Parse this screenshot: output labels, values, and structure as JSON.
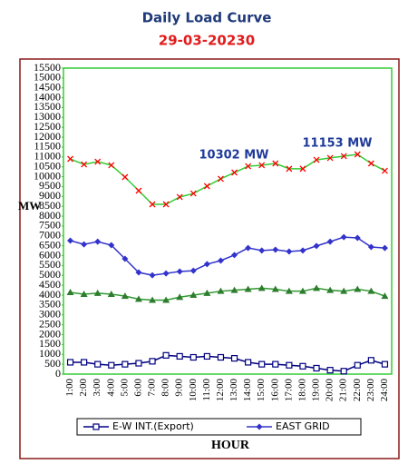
{
  "chart_data": {
    "type": "line",
    "title": "Daily Load Curve",
    "subtitle": "29-03-20230",
    "xlabel": "HOUR",
    "ylabel": "MW",
    "annotations": [
      "10302 MW",
      "11153 MW"
    ],
    "categories": [
      "1:00",
      "2:00",
      "3:00",
      "4:00",
      "5:00",
      "6:00",
      "7:00",
      "8:00",
      "9:00",
      "10:00",
      "11:00",
      "12:00",
      "13:00",
      "14:00",
      "15:00",
      "16:00",
      "17:00",
      "18:00",
      "19:00",
      "20:00",
      "21:00",
      "22:00",
      "23:00",
      "24:00"
    ],
    "ylim": [
      0,
      15500
    ],
    "yticks": [
      0,
      500,
      1000,
      1500,
      2000,
      2500,
      3000,
      3500,
      4000,
      4500,
      5000,
      5500,
      6000,
      6500,
      7000,
      7500,
      8000,
      8500,
      9000,
      9500,
      10000,
      10500,
      11000,
      11500,
      12000,
      12500,
      13000,
      13500,
      14000,
      14500,
      15000,
      15500
    ],
    "grid": false,
    "series": [
      {
        "name": "E-W INT.(Export)",
        "color": "#000080",
        "marker": "square",
        "values": [
          600,
          600,
          500,
          450,
          500,
          550,
          650,
          950,
          900,
          850,
          900,
          850,
          800,
          600,
          500,
          500,
          450,
          400,
          300,
          200,
          150,
          450,
          700,
          500
        ]
      },
      {
        "name": "EAST GRID",
        "color": "#3333cc",
        "marker": "diamond",
        "values": [
          6760,
          6570,
          6710,
          6530,
          5840,
          5150,
          5010,
          5100,
          5200,
          5240,
          5570,
          5750,
          6030,
          6390,
          6260,
          6300,
          6210,
          6260,
          6490,
          6710,
          6940,
          6900,
          6440,
          6390
        ]
      },
      {
        "color": "#33cc33",
        "marker": "x",
        "marker_color": "#ff0000",
        "values": [
          10900,
          10620,
          10760,
          10580,
          9980,
          9290,
          8600,
          8600,
          8970,
          9150,
          9520,
          9890,
          10210,
          10530,
          10580,
          10670,
          10400,
          10400,
          10850,
          10950,
          11040,
          11130,
          10670,
          10300
        ]
      },
      {
        "color": "#339933",
        "marker": "triangle",
        "marker_color": "#2e7d2e",
        "values": [
          4140,
          4050,
          4100,
          4050,
          3950,
          3800,
          3750,
          3750,
          3900,
          4000,
          4100,
          4200,
          4250,
          4300,
          4350,
          4300,
          4200,
          4200,
          4350,
          4250,
          4200,
          4300,
          4200,
          3950
        ]
      }
    ]
  }
}
